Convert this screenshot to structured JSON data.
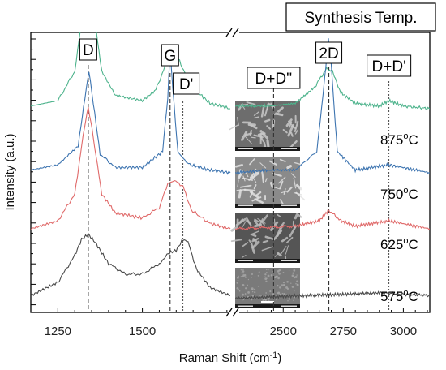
{
  "chart_data": {
    "type": "line",
    "title": "Synthesis Temp.",
    "xlabel": "Raman Shift (cm-1)",
    "xlabel_prefix": "Raman Shift (cm",
    "xlabel_sup": "-1",
    "xlabel_suffix": ")",
    "ylabel": "Intensity (a.u.)",
    "x_ranges": [
      [
        1170,
        1760
      ],
      [
        2300,
        3110
      ]
    ],
    "x_break": true,
    "x_ticks": [
      1250,
      1500,
      2500,
      2750,
      3000
    ],
    "x_tick_labels": [
      "1250",
      "1500",
      "2500",
      "2750",
      "3000"
    ],
    "y_ticks_labeled": false,
    "grid": false,
    "peaks": [
      {
        "label": "D",
        "x": 1340
      },
      {
        "label": "G",
        "x": 1582
      },
      {
        "label": "D'",
        "x": 1620
      },
      {
        "label": "D+D''",
        "x": 2460
      },
      {
        "label": "2D",
        "x": 2690
      },
      {
        "label": "D+D'",
        "x": 2940
      }
    ],
    "series": [
      {
        "name": "875ºC",
        "label_main": "875º",
        "label_unit": "C",
        "color": "#4db38c",
        "offset": 0.73,
        "points": [
          [
            1170,
            0.04
          ],
          [
            1250,
            0.06
          ],
          [
            1300,
            0.17
          ],
          [
            1325,
            0.4
          ],
          [
            1340,
            0.53
          ],
          [
            1355,
            0.4
          ],
          [
            1380,
            0.17
          ],
          [
            1420,
            0.08
          ],
          [
            1500,
            0.06
          ],
          [
            1540,
            0.1
          ],
          [
            1570,
            0.2
          ],
          [
            1590,
            0.26
          ],
          [
            1610,
            0.21
          ],
          [
            1640,
            0.12
          ],
          [
            1700,
            0.05
          ],
          [
            1760,
            0.03
          ],
          [
            2300,
            0.04
          ],
          [
            2450,
            0.04
          ],
          [
            2550,
            0.05
          ],
          [
            2630,
            0.11
          ],
          [
            2680,
            0.18
          ],
          [
            2705,
            0.17
          ],
          [
            2740,
            0.09
          ],
          [
            2800,
            0.05
          ],
          [
            2900,
            0.04
          ],
          [
            2940,
            0.06
          ],
          [
            3000,
            0.04
          ],
          [
            3110,
            0.03
          ]
        ]
      },
      {
        "name": "750ºC",
        "label_main": "750º",
        "label_unit": "C",
        "color": "#3d74b0",
        "offset": 0.5,
        "points": [
          [
            1170,
            0.03
          ],
          [
            1250,
            0.05
          ],
          [
            1310,
            0.12
          ],
          [
            1330,
            0.3
          ],
          [
            1342,
            0.4
          ],
          [
            1355,
            0.28
          ],
          [
            1375,
            0.09
          ],
          [
            1420,
            0.04
          ],
          [
            1500,
            0.04
          ],
          [
            1560,
            0.1
          ],
          [
            1575,
            0.3
          ],
          [
            1582,
            0.48
          ],
          [
            1590,
            0.33
          ],
          [
            1605,
            0.1
          ],
          [
            1622,
            0.07
          ],
          [
            1640,
            0.05
          ],
          [
            1700,
            0.03
          ],
          [
            1760,
            0.02
          ],
          [
            2300,
            0.02
          ],
          [
            2450,
            0.03
          ],
          [
            2550,
            0.03
          ],
          [
            2640,
            0.1
          ],
          [
            2670,
            0.35
          ],
          [
            2688,
            0.52
          ],
          [
            2700,
            0.42
          ],
          [
            2725,
            0.1
          ],
          [
            2800,
            0.03
          ],
          [
            2940,
            0.05
          ],
          [
            3110,
            0.02
          ]
        ]
      },
      {
        "name": "625ºC",
        "label_main": "625º",
        "label_unit": "C",
        "color": "#e06a6a",
        "offset": 0.28,
        "points": [
          [
            1170,
            0.03
          ],
          [
            1250,
            0.06
          ],
          [
            1300,
            0.16
          ],
          [
            1325,
            0.38
          ],
          [
            1340,
            0.49
          ],
          [
            1355,
            0.37
          ],
          [
            1380,
            0.16
          ],
          [
            1420,
            0.09
          ],
          [
            1500,
            0.07
          ],
          [
            1550,
            0.11
          ],
          [
            1575,
            0.2
          ],
          [
            1595,
            0.21
          ],
          [
            1620,
            0.19
          ],
          [
            1645,
            0.1
          ],
          [
            1700,
            0.05
          ],
          [
            1760,
            0.03
          ],
          [
            2300,
            0.03
          ],
          [
            2550,
            0.04
          ],
          [
            2650,
            0.06
          ],
          [
            2690,
            0.1
          ],
          [
            2740,
            0.06
          ],
          [
            2800,
            0.04
          ],
          [
            2940,
            0.06
          ],
          [
            3110,
            0.03
          ]
        ]
      },
      {
        "name": "575ºC",
        "label_main": "575º",
        "label_unit": "C",
        "color": "#4a4a4a",
        "offset": 0.04,
        "points": [
          [
            1170,
            0.02
          ],
          [
            1250,
            0.07
          ],
          [
            1300,
            0.17
          ],
          [
            1320,
            0.23
          ],
          [
            1340,
            0.25
          ],
          [
            1360,
            0.22
          ],
          [
            1400,
            0.14
          ],
          [
            1450,
            0.1
          ],
          [
            1500,
            0.1
          ],
          [
            1550,
            0.14
          ],
          [
            1580,
            0.18
          ],
          [
            1600,
            0.19
          ],
          [
            1620,
            0.23
          ],
          [
            1635,
            0.22
          ],
          [
            1660,
            0.12
          ],
          [
            1700,
            0.05
          ],
          [
            1760,
            0.02
          ],
          [
            2300,
            0.01
          ],
          [
            2600,
            0.02
          ],
          [
            2900,
            0.03
          ],
          [
            3110,
            0.02
          ]
        ]
      }
    ],
    "insets": [
      {
        "name": "sem-875"
      },
      {
        "name": "sem-750"
      },
      {
        "name": "sem-625"
      },
      {
        "name": "sem-575"
      }
    ]
  }
}
